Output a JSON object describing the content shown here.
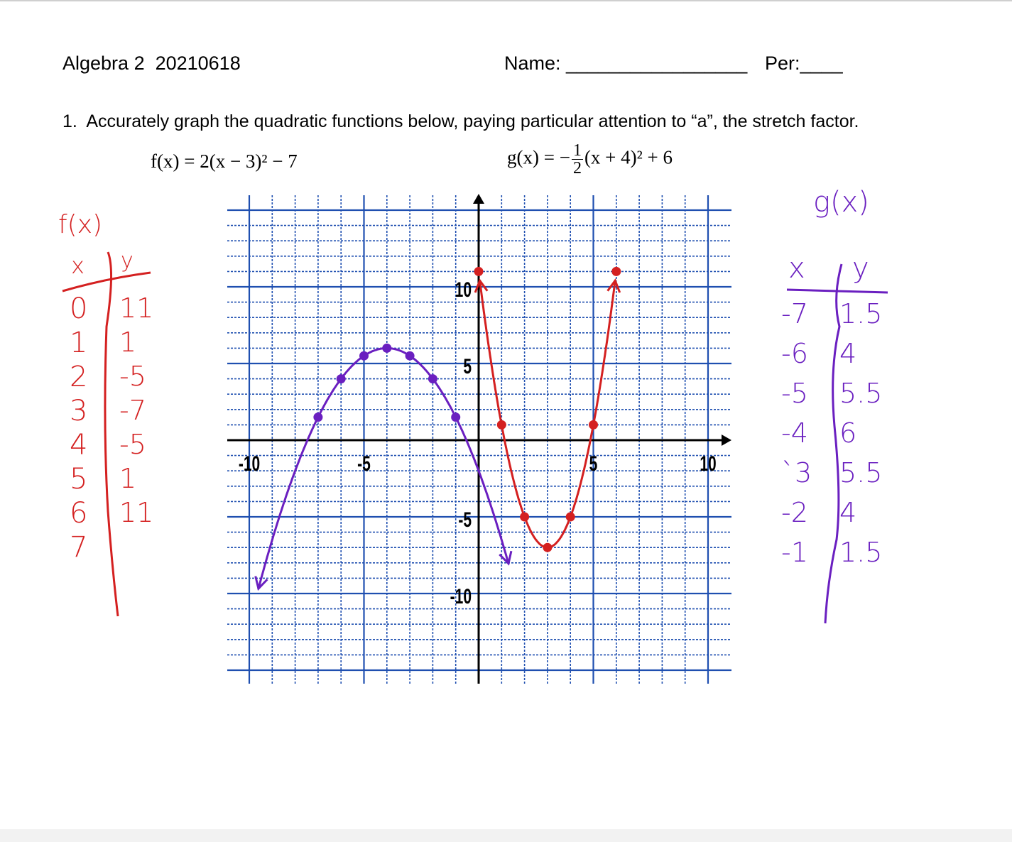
{
  "header": {
    "course": "Algebra 2  20210618",
    "name_label": "Name: _________________",
    "period_label": "Per:____"
  },
  "question": {
    "number": "1.",
    "text": "Accurately graph the quadratic functions below, paying particular attention to “a”, the stretch factor.",
    "f_lhs": "f(x) = 2(x − 3)² − 7",
    "g_lhs": "g(x) = −",
    "g_num": "1",
    "g_den": "2",
    "g_rhs": "(x + 4)² + 6"
  },
  "colors": {
    "f": "#d42020",
    "g": "#6a1fc0",
    "grid": "#1f4fb0",
    "axis": "#000000"
  },
  "graph": {
    "x_ticks": [
      "-10",
      "-5",
      "5",
      "10"
    ],
    "y_ticks": [
      "10",
      "5",
      "-5",
      "-10"
    ],
    "x_range": [
      -11,
      11
    ],
    "y_range": [
      -15,
      15
    ],
    "f": {
      "a": 2,
      "h": 3,
      "k": -7,
      "points": [
        [
          0,
          11
        ],
        [
          1,
          1
        ],
        [
          2,
          -5
        ],
        [
          3,
          -7
        ],
        [
          4,
          -5
        ],
        [
          5,
          1
        ],
        [
          6,
          11
        ]
      ]
    },
    "g": {
      "a": -0.5,
      "h": -4,
      "k": 6,
      "points": [
        [
          -7,
          1.5
        ],
        [
          -6,
          4
        ],
        [
          -5,
          5.5
        ],
        [
          -4,
          6
        ],
        [
          -3,
          5.5
        ],
        [
          -2,
          4
        ],
        [
          -1,
          1.5
        ]
      ]
    }
  },
  "f_table": {
    "title": "f(x)",
    "x_header": "x",
    "y_header": "y",
    "x": [
      "0",
      "1",
      "2",
      "3",
      "4",
      "5",
      "6",
      "7"
    ],
    "y": [
      "11",
      "1",
      "-5",
      "-7",
      "-5",
      "1",
      "11",
      ""
    ]
  },
  "g_table": {
    "title": "g(x)",
    "x_header": "x",
    "y_header": "y",
    "x": [
      "-7",
      "-6",
      "-5",
      "-4",
      "`3",
      "-2",
      "-1"
    ],
    "y": [
      "1.5",
      "4",
      "5.5",
      "6",
      "5.5",
      "4",
      "1.5"
    ]
  }
}
